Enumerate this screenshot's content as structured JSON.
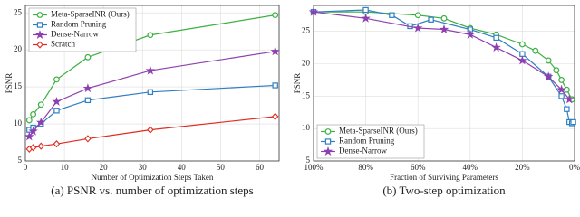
{
  "chart_data": [
    {
      "type": "line",
      "caption": "(a) PSNR vs. number of optimization steps",
      "xlabel": "Number of Optimization Steps Taken",
      "ylabel": "PSNR",
      "xlim": [
        0,
        65
      ],
      "ylim": [
        5,
        26
      ],
      "xticks": [
        0,
        10,
        20,
        30,
        40,
        50,
        60
      ],
      "yticks": [
        5,
        10,
        15,
        20,
        25
      ],
      "grid": true,
      "legend": "top-left",
      "series": [
        {
          "name": "Meta-SparseINR (Ours)",
          "color": "#3cb043",
          "marker": "circle",
          "x": [
            1,
            2,
            4,
            8,
            16,
            32,
            64
          ],
          "values": [
            10.5,
            11.3,
            12.6,
            16,
            19,
            22,
            24.7
          ]
        },
        {
          "name": "Random Pruning",
          "color": "#2f7fc1",
          "marker": "square",
          "x": [
            1,
            2,
            4,
            8,
            16,
            32,
            64
          ],
          "values": [
            9.2,
            9.5,
            10,
            11.8,
            13.2,
            14.3,
            15.2
          ]
        },
        {
          "name": "Dense-Narrow",
          "color": "#8e3fb0",
          "marker": "star",
          "x": [
            1,
            2,
            4,
            8,
            16,
            32,
            64
          ],
          "values": [
            8.3,
            9,
            10.2,
            13,
            14.8,
            17.2,
            19.8
          ]
        },
        {
          "name": "Scratch",
          "color": "#e02b20",
          "marker": "diamond",
          "x": [
            1,
            2,
            4,
            8,
            16,
            32,
            64
          ],
          "values": [
            6.6,
            6.8,
            7,
            7.3,
            8,
            9.2,
            11
          ]
        }
      ]
    },
    {
      "type": "line",
      "caption": "(b) Two-step optimization",
      "xlabel": "Fraction of Surviving Parameters",
      "ylabel": "PSNR",
      "xlim": [
        100,
        0
      ],
      "ylim": [
        5,
        29
      ],
      "xticks": [
        {
          "value": 100,
          "label": "100%"
        },
        {
          "value": 80,
          "label": "80%"
        },
        {
          "value": 60,
          "label": "60%"
        },
        {
          "value": 40,
          "label": "40%"
        },
        {
          "value": 20,
          "label": "20%"
        },
        {
          "value": 0,
          "label": "0%"
        }
      ],
      "yticks": [
        5,
        10,
        15,
        20,
        25
      ],
      "grid": true,
      "legend": "bottom-left",
      "series": [
        {
          "name": "Meta-SparseINR (Ours)",
          "color": "#3cb043",
          "marker": "circle",
          "x": [
            100,
            80,
            60,
            50,
            40,
            30,
            20,
            15,
            10,
            7,
            5,
            3,
            1
          ],
          "values": [
            28,
            28,
            27.5,
            27,
            25.5,
            24.5,
            23,
            22,
            20.5,
            19,
            17.5,
            16,
            14.5
          ]
        },
        {
          "name": "Random Pruning",
          "color": "#2f7fc1",
          "marker": "square",
          "x": [
            100,
            80,
            70,
            63,
            55,
            40,
            30,
            20,
            10,
            5,
            3,
            2,
            1,
            0.5
          ],
          "values": [
            28,
            28.3,
            27.5,
            25.8,
            26.8,
            25.3,
            24,
            21.5,
            18,
            15,
            13,
            11,
            10.8,
            11
          ]
        },
        {
          "name": "Dense-Narrow",
          "color": "#8e3fb0",
          "marker": "star",
          "x": [
            100,
            80,
            60,
            50,
            40,
            30,
            20,
            10,
            5,
            2
          ],
          "values": [
            28,
            27,
            25.5,
            25.3,
            24.5,
            22.5,
            20.5,
            18,
            16,
            14.5
          ]
        }
      ]
    }
  ]
}
